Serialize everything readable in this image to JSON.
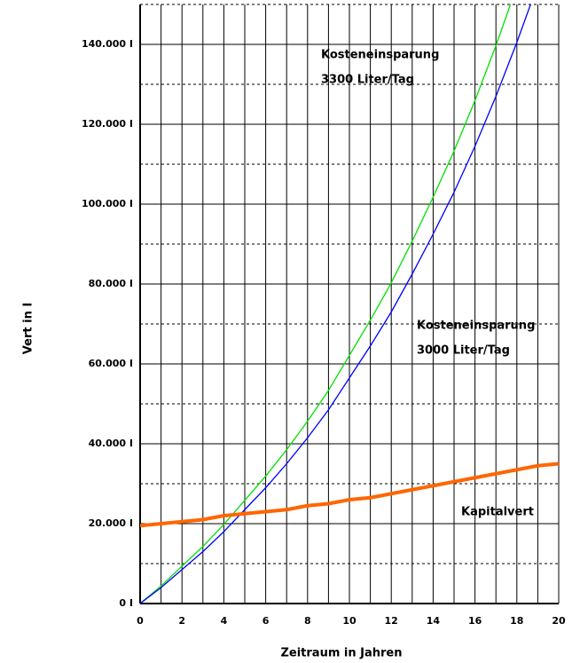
{
  "chart_data": {
    "type": "line",
    "xlabel": "Zeitraum in Jahren",
    "ylabel": "Vert in I",
    "x": [
      0,
      1,
      2,
      3,
      4,
      5,
      6,
      7,
      8,
      9,
      10,
      11,
      12,
      13,
      14,
      15,
      16,
      17,
      18,
      19,
      20
    ],
    "series": [
      {
        "label": [
          "Kosteneinsparung",
          "3300 Liter/Tag"
        ],
        "color": "#00e000",
        "values": [
          0,
          4400,
          9350,
          14300,
          19800,
          25850,
          31900,
          38500,
          45650,
          53350,
          62150,
          70950,
          80300,
          90750,
          101750,
          113300,
          125950,
          139700,
          154550,
          null,
          null
        ]
      },
      {
        "label": [
          "Kosteneinsparung",
          "3000 Liter/Tag"
        ],
        "color": "#0000ff",
        "values": [
          0,
          4000,
          8500,
          13000,
          18000,
          23500,
          29000,
          35000,
          41500,
          48500,
          56500,
          64500,
          73000,
          82500,
          92500,
          103000,
          114500,
          127000,
          140500,
          155000,
          null
        ]
      },
      {
        "label": [
          "Kapitalvert"
        ],
        "color": "#ff6600",
        "values": [
          19500,
          20000,
          20500,
          21000,
          22000,
          22500,
          23000,
          23500,
          24500,
          25000,
          26000,
          26500,
          27500,
          28500,
          29500,
          30500,
          31500,
          32500,
          33500,
          34500,
          35000
        ]
      }
    ],
    "xlim": [
      0,
      20
    ],
    "ylim": [
      0,
      150000
    ],
    "xticks": [
      0,
      2,
      4,
      6,
      8,
      10,
      12,
      14,
      16,
      18,
      20
    ],
    "x_minor_grid": [
      1,
      3,
      5,
      7,
      9,
      11,
      13,
      15,
      17,
      19
    ],
    "yticks": [
      {
        "value": 0,
        "label": "0 I"
      },
      {
        "value": 20000,
        "label": "20.000 I"
      },
      {
        "value": 40000,
        "label": "40.000 I"
      },
      {
        "value": 60000,
        "label": "60.000 I"
      },
      {
        "value": 80000,
        "label": "80.000 I"
      },
      {
        "value": 100000,
        "label": "100.000 I"
      },
      {
        "value": 120000,
        "label": "120.000 I"
      },
      {
        "value": 140000,
        "label": "140.000 I"
      }
    ],
    "y_minor_grid": [
      10000,
      30000,
      50000,
      70000,
      90000,
      110000,
      130000,
      150000
    ],
    "grid": true
  }
}
